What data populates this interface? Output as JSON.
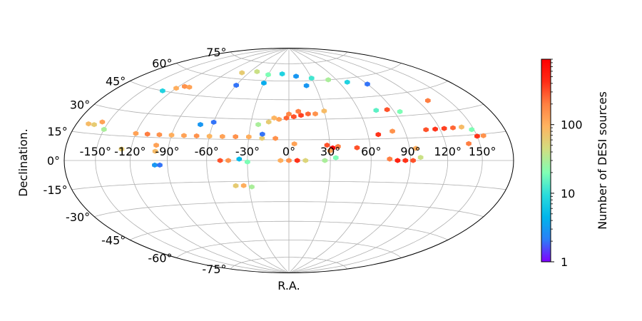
{
  "chart_data": {
    "type": "heatmap",
    "projection": "hammer-aitoff",
    "title": "",
    "xlabel": "R.A.",
    "ylabel": "Declination.",
    "grid": true,
    "x_ticks": [
      "-150°",
      "-120°",
      "-90°",
      "-60°",
      "-30°",
      "0°",
      "30°",
      "60°",
      "90°",
      "120°",
      "150°"
    ],
    "y_ticks": [
      "-75°",
      "-60°",
      "-45°",
      "-30°",
      "-15°",
      "0°",
      "15°",
      "30°",
      "45°",
      "60°",
      "75°"
    ],
    "colorbar": {
      "label": "Number of DESI sources",
      "scale": "log",
      "range": [
        1,
        900
      ],
      "ticks": [
        "1",
        "10",
        "100"
      ],
      "colormap": "rainbow",
      "colors": [
        "#8000ff",
        "#2c7ef7",
        "#00b5eb",
        "#2adcdc",
        "#80ffb4",
        "#d4dc7f",
        "#ffb360",
        "#ff7f41",
        "#ff2c16",
        "#ff0000"
      ]
    },
    "hexbins": [
      {
        "ra": -8,
        "dec": 30,
        "count": 120
      },
      {
        "ra": -2,
        "dec": 31,
        "count": 250
      },
      {
        "ra": 4,
        "dec": 32,
        "count": 300
      },
      {
        "ra": 10,
        "dec": 33,
        "count": 350
      },
      {
        "ra": 16,
        "dec": 34,
        "count": 250
      },
      {
        "ra": 22,
        "dec": 34,
        "count": 150
      },
      {
        "ra": -16,
        "dec": 28,
        "count": 60
      },
      {
        "ra": -24,
        "dec": 26,
        "count": 30
      },
      {
        "ra": 0,
        "dec": 34,
        "count": 180
      },
      {
        "ra": 8,
        "dec": 36,
        "count": 200
      },
      {
        "ra": 30,
        "dec": 36,
        "count": 80
      },
      {
        "ra": -12,
        "dec": 31,
        "count": 90
      },
      {
        "ra": 32,
        "dec": 9,
        "count": 800
      },
      {
        "ra": 28,
        "dec": 11,
        "count": 300
      },
      {
        "ra": 36,
        "dec": 10,
        "count": 200
      },
      {
        "ra": 30,
        "dec": 7,
        "count": 120
      },
      {
        "ra": 80,
        "dec": 0,
        "count": 500
      },
      {
        "ra": 86,
        "dec": 0,
        "count": 400
      },
      {
        "ra": 92,
        "dec": 0,
        "count": 300
      },
      {
        "ra": 74,
        "dec": 1,
        "count": 200
      },
      {
        "ra": 98,
        "dec": 2,
        "count": 40
      },
      {
        "ra": 108,
        "dec": 20,
        "count": 300
      },
      {
        "ra": 116,
        "dec": 20,
        "count": 400
      },
      {
        "ra": 124,
        "dec": 20,
        "count": 350
      },
      {
        "ra": 132,
        "dec": 20,
        "count": 250
      },
      {
        "ra": 140,
        "dec": 20,
        "count": 80
      },
      {
        "ra": 148,
        "dec": 18,
        "count": 20
      },
      {
        "ra": 150,
        "dec": 14,
        "count": 400
      },
      {
        "ra": 156,
        "dec": 14,
        "count": 150
      },
      {
        "ra": 140,
        "dec": 10,
        "count": 200
      },
      {
        "ra": -168,
        "dec": 20,
        "count": 80
      },
      {
        "ra": -162,
        "dec": 20,
        "count": 60
      },
      {
        "ra": -156,
        "dec": 22,
        "count": 120
      },
      {
        "ra": -150,
        "dec": 18,
        "count": 30
      },
      {
        "ra": -120,
        "dec": 17,
        "count": 120
      },
      {
        "ra": -110,
        "dec": 17,
        "count": 200
      },
      {
        "ra": -100,
        "dec": 17,
        "count": 150
      },
      {
        "ra": -90,
        "dec": 17,
        "count": 100
      },
      {
        "ra": -80,
        "dec": 17,
        "count": 120
      },
      {
        "ra": -70,
        "dec": 17,
        "count": 150
      },
      {
        "ra": -60,
        "dec": 17,
        "count": 90
      },
      {
        "ra": -50,
        "dec": 17,
        "count": 120
      },
      {
        "ra": -40,
        "dec": 17,
        "count": 150
      },
      {
        "ra": -30,
        "dec": 17,
        "count": 100
      },
      {
        "ra": -20,
        "dec": 16,
        "count": 60
      },
      {
        "ra": -10,
        "dec": 16,
        "count": 150
      },
      {
        "ra": -100,
        "dec": 10,
        "count": 120
      },
      {
        "ra": -100,
        "dec": 6,
        "count": 80
      },
      {
        "ra": -128,
        "dec": 7,
        "count": 60
      },
      {
        "ra": -50,
        "dec": 0,
        "count": 300
      },
      {
        "ra": -44,
        "dec": 0,
        "count": 150
      },
      {
        "ra": -30,
        "dec": -1,
        "count": 20
      },
      {
        "ra": -36,
        "dec": 1,
        "count": 5
      },
      {
        "ra": 0,
        "dec": 0,
        "count": 150
      },
      {
        "ra": 6,
        "dec": 0,
        "count": 400
      },
      {
        "ra": -6,
        "dec": 0,
        "count": 100
      },
      {
        "ra": 12,
        "dec": 0,
        "count": 50
      },
      {
        "ra": 26,
        "dec": 0,
        "count": 30
      },
      {
        "ra": 34,
        "dec": 2,
        "count": 20
      },
      {
        "ra": -100,
        "dec": -3,
        "count": 3
      },
      {
        "ra": -96,
        "dec": -3,
        "count": 2
      },
      {
        "ra": -40,
        "dec": -18,
        "count": 60
      },
      {
        "ra": -34,
        "dec": -18,
        "count": 100
      },
      {
        "ra": -28,
        "dec": -19,
        "count": 30
      },
      {
        "ra": -120,
        "dec": 48,
        "count": 100
      },
      {
        "ra": -114,
        "dec": 50,
        "count": 150
      },
      {
        "ra": -108,
        "dec": 50,
        "count": 120
      },
      {
        "ra": -130,
        "dec": 45,
        "count": 8
      },
      {
        "ra": -70,
        "dec": 65,
        "count": 60
      },
      {
        "ra": -50,
        "dec": 67,
        "count": 40
      },
      {
        "ra": -30,
        "dec": 65,
        "count": 20
      },
      {
        "ra": -10,
        "dec": 66,
        "count": 8
      },
      {
        "ra": 10,
        "dec": 64,
        "count": 3
      },
      {
        "ra": 30,
        "dec": 62,
        "count": 12
      },
      {
        "ra": 50,
        "dec": 60,
        "count": 30
      },
      {
        "ra": 70,
        "dec": 57,
        "count": 8
      },
      {
        "ra": 90,
        "dec": 54,
        "count": 2
      },
      {
        "ra": -60,
        "dec": 55,
        "count": 2
      },
      {
        "ra": -30,
        "dec": 58,
        "count": 4
      },
      {
        "ra": 20,
        "dec": 56,
        "count": 3
      },
      {
        "ra": 75,
        "dec": 35,
        "count": 15
      },
      {
        "ra": 85,
        "dec": 35,
        "count": 300
      },
      {
        "ra": 95,
        "dec": 33,
        "count": 20
      },
      {
        "ra": 130,
        "dec": 38,
        "count": 200
      },
      {
        "ra": -70,
        "dec": 25,
        "count": 3
      },
      {
        "ra": -60,
        "dec": 27,
        "count": 2
      },
      {
        "ra": -20,
        "dec": 19,
        "count": 2
      },
      {
        "ra": 4,
        "dec": 12,
        "count": 120
      },
      {
        "ra": 50,
        "dec": 9,
        "count": 300
      },
      {
        "ra": 68,
        "dec": 18,
        "count": 400
      },
      {
        "ra": 80,
        "dec": 20,
        "count": 150
      },
      {
        "ra": 95,
        "dec": 8,
        "count": 100
      }
    ]
  }
}
